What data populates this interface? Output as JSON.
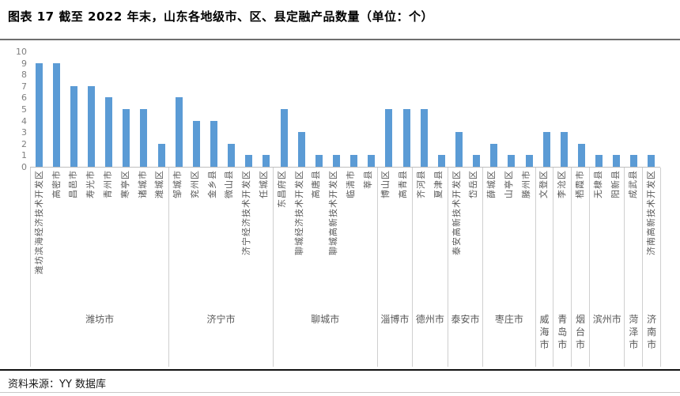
{
  "header": {
    "title": "图表 17  截至 2022 年末，山东各地级市、区、县定融产品数量（单位：个）"
  },
  "footer": {
    "source": "资料来源：YY 数据库"
  },
  "colors": {
    "bar": "#5B9BD5",
    "axis_text": "#7F7F7F",
    "label_text": "#595959",
    "axis_line": "#BFBFBF"
  },
  "chart_data": {
    "type": "bar",
    "title": "截至 2022 年末，山东各地级市、区、县定融产品数量",
    "unit": "个",
    "ylabel": "",
    "xlabel": "",
    "ylim": [
      0,
      10
    ],
    "yticks": [
      0,
      1,
      2,
      3,
      4,
      5,
      6,
      7,
      8,
      9,
      10
    ],
    "grid": false,
    "legend_position": "none",
    "groups": [
      {
        "city": "潍坊市",
        "categories": [
          "潍坊滨海经济技术开发区",
          "高密市",
          "昌邑市",
          "寿光市",
          "青州市",
          "寒亭区",
          "诸城市",
          "潍城区"
        ],
        "values": [
          9,
          9,
          7,
          7,
          6,
          5,
          5,
          2
        ]
      },
      {
        "city": "济宁市",
        "categories": [
          "邹城市",
          "兖州区",
          "金乡县",
          "微山县",
          "济宁经济技术开发区",
          "任城区"
        ],
        "values": [
          6,
          4,
          4,
          2,
          1,
          1
        ]
      },
      {
        "city": "聊城市",
        "categories": [
          "东昌府区",
          "聊城经济技术开发区",
          "高唐县",
          "聊城高新技术开发区",
          "临清市",
          "莘县"
        ],
        "values": [
          5,
          3,
          1,
          1,
          1,
          1
        ]
      },
      {
        "city": "淄博市",
        "categories": [
          "博山区",
          "高青县"
        ],
        "values": [
          5,
          5
        ]
      },
      {
        "city": "德州市",
        "categories": [
          "齐河县",
          "夏津县"
        ],
        "values": [
          5,
          1
        ]
      },
      {
        "city": "泰安市",
        "categories": [
          "泰安高新技术开发区",
          "岱岳区"
        ],
        "values": [
          3,
          1
        ]
      },
      {
        "city": "枣庄市",
        "categories": [
          "薛城区",
          "山亭区",
          "滕州市"
        ],
        "values": [
          2,
          1,
          1
        ]
      },
      {
        "city": "威海市",
        "categories": [
          "文登区"
        ],
        "values": [
          3
        ]
      },
      {
        "city": "青岛市",
        "categories": [
          "李沧区"
        ],
        "values": [
          3
        ]
      },
      {
        "city": "烟台市",
        "categories": [
          "栖霞市"
        ],
        "values": [
          2
        ]
      },
      {
        "city": "滨州市",
        "categories": [
          "无棣县",
          "阳新县"
        ],
        "values": [
          1,
          1
        ]
      },
      {
        "city": "菏泽市",
        "categories": [
          "成武县"
        ],
        "values": [
          1
        ]
      },
      {
        "city": "济南市",
        "categories": [
          "济南高新技术开发区"
        ],
        "values": [
          1
        ]
      }
    ]
  }
}
